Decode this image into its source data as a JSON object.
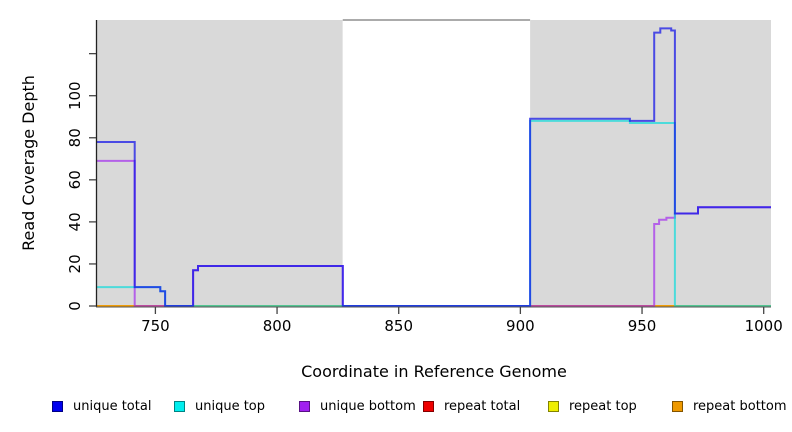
{
  "chart_data": {
    "type": "line",
    "step_interpolation": true,
    "title": "",
    "xlabel": "Coordinate in Reference Genome",
    "ylabel": "Read Coverage Depth",
    "xlim": [
      726,
      1003
    ],
    "ylim": [
      0,
      136
    ],
    "x_ticks": [
      750,
      800,
      850,
      900,
      950,
      1000
    ],
    "y_ticks": [
      0,
      20,
      40,
      60,
      80,
      100,
      120
    ],
    "y_tick_labels": [
      "0",
      "20",
      "40",
      "60",
      "80",
      "100",
      ""
    ],
    "grid": false,
    "legend_position": "bottom",
    "plot_background": "#ffffff",
    "shaded_region_color": "#d9d9d9",
    "background_regions": [
      {
        "name": "shaded-left",
        "x0": 726,
        "x1": 827,
        "color": "#d9d9d9"
      },
      {
        "name": "gap-white",
        "x0": 827,
        "x1": 904,
        "color": "#ffffff",
        "top_border": "#8f8f8f"
      },
      {
        "name": "shaded-right",
        "x0": 904,
        "x1": 1003,
        "color": "#d9d9d9"
      }
    ],
    "series": [
      {
        "name": "repeat total",
        "color": "#E00000",
        "opacity": 0.65,
        "points": [
          [
            726,
            0
          ],
          [
            1003,
            0
          ]
        ]
      },
      {
        "name": "repeat top",
        "color": "#E8E800",
        "opacity": 0.65,
        "points": [
          [
            726,
            0
          ],
          [
            1003,
            0
          ]
        ]
      },
      {
        "name": "repeat bottom",
        "color": "#F29100",
        "opacity": 0.65,
        "points": [
          [
            726,
            0
          ],
          [
            1003,
            0
          ]
        ]
      },
      {
        "name": "unique bottom",
        "color": "#A020F0",
        "opacity": 0.65,
        "points": [
          [
            726,
            69
          ],
          [
            741.5,
            0
          ],
          [
            765.5,
            17
          ],
          [
            767.5,
            19
          ],
          [
            827,
            0
          ],
          [
            955,
            39
          ],
          [
            957,
            41
          ],
          [
            960,
            42
          ],
          [
            963.5,
            44
          ],
          [
            973,
            47
          ],
          [
            1003,
            47
          ]
        ]
      },
      {
        "name": "unique top",
        "color": "#00DCDC",
        "opacity": 0.65,
        "points": [
          [
            726,
            9
          ],
          [
            752,
            7
          ],
          [
            754,
            0
          ],
          [
            904,
            88
          ],
          [
            945,
            87
          ],
          [
            963.5,
            0
          ],
          [
            1003,
            0
          ]
        ]
      },
      {
        "name": "unique total",
        "color": "#1212E8",
        "opacity": 0.72,
        "points": [
          [
            726,
            78
          ],
          [
            741.5,
            9
          ],
          [
            752,
            7
          ],
          [
            754,
            0
          ],
          [
            765.5,
            17
          ],
          [
            767.5,
            19
          ],
          [
            827,
            0
          ],
          [
            904,
            89
          ],
          [
            945,
            88
          ],
          [
            955,
            130
          ],
          [
            957.5,
            132
          ],
          [
            962,
            131
          ],
          [
            963.5,
            44
          ],
          [
            973,
            47
          ],
          [
            1003,
            47
          ]
        ]
      }
    ]
  },
  "axes": {
    "xlabel": "Coordinate in Reference Genome",
    "ylabel": "Read Coverage Depth"
  },
  "legend": {
    "items": [
      {
        "label": "unique total",
        "color": "#0000EE"
      },
      {
        "label": "unique top",
        "color": "#00EEEE"
      },
      {
        "label": "unique bottom",
        "color": "#A020F0"
      },
      {
        "label": "repeat total",
        "color": "#EE0000"
      },
      {
        "label": "repeat top",
        "color": "#EEEE00"
      },
      {
        "label": "repeat bottom",
        "color": "#EE9900"
      }
    ]
  }
}
